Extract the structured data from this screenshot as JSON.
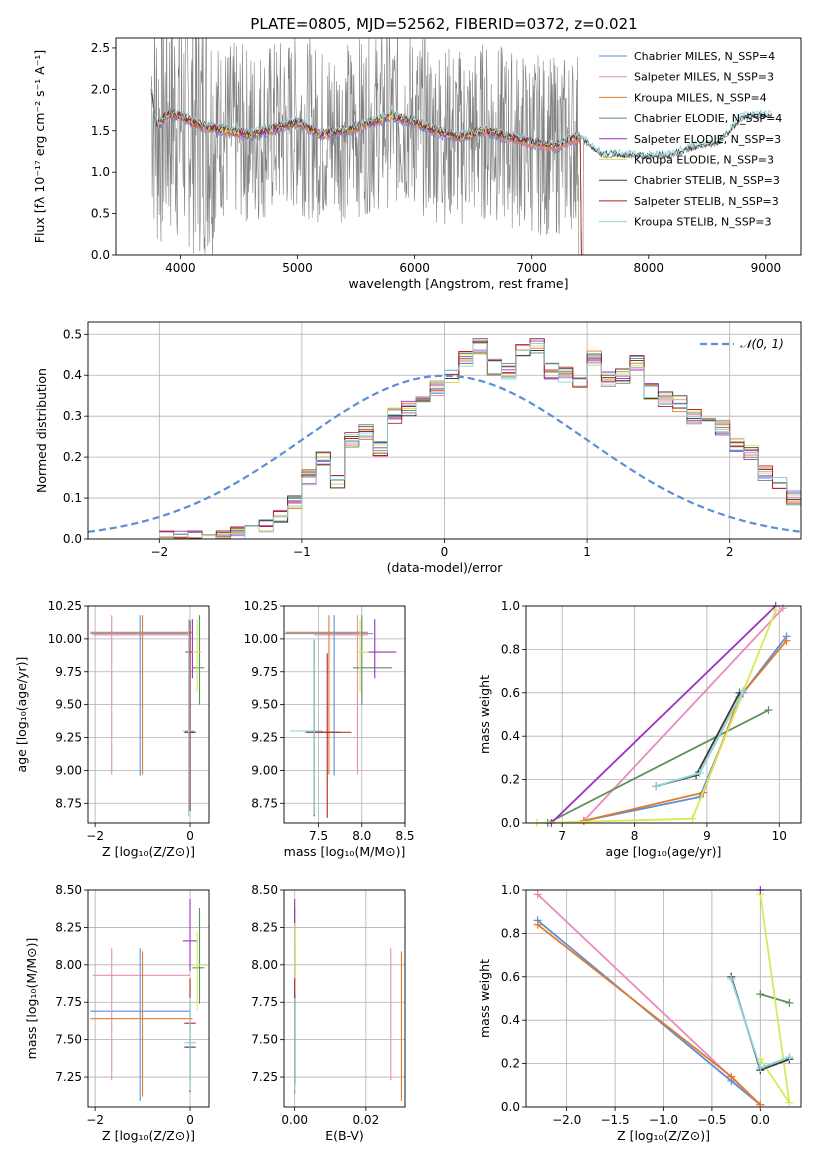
{
  "title": "PLATE=0805, MJD=52562, FIBERID=0372, z=0.021",
  "colors": {
    "Chabrier MILES": "#5b8fd9",
    "Salpeter MILES": "#e98bbd",
    "Kroupa MILES": "#e07b2a",
    "Chabrier ELODIE": "#5e8f5e",
    "Salpeter ELODIE": "#9b30c0",
    "Kroupa ELODIE": "#d8e85a",
    "Chabrier STELIB": "#3a3a3a",
    "Salpeter STELIB": "#b22222",
    "Kroupa STELIB": "#8fd4d8",
    "data": "#808080",
    "normal": "#5b8fd9"
  },
  "chart_data": [
    {
      "type": "line",
      "name": "spectrum",
      "xlabel": "wavelength [Angstrom, rest frame]",
      "ylabel": "Flux [fλ 10⁻¹⁷ erg cm⁻² s⁻¹ A⁻¹]",
      "xlim": [
        3450,
        9300
      ],
      "ylim": [
        0,
        2.62
      ],
      "xticks": [
        "4000",
        "5000",
        "6000",
        "7000",
        "8000",
        "9000"
      ],
      "yticks": [
        "0.0",
        "0.5",
        "1.0",
        "1.5",
        "2.0",
        "2.5"
      ],
      "legend_placement": "top-right",
      "legend": [
        "Chabrier MILES, N_SSP=4",
        "Salpeter MILES, N_SSP=3",
        "Kroupa MILES, N_SSP=4",
        "Chabrier ELODIE, N_SSP=4",
        "Salpeter ELODIE, N_SSP=3",
        "Kroupa ELODIE, N_SSP=3",
        "Chabrier STELIB, N_SSP=3",
        "Salpeter STELIB, N_SSP=3",
        "Kroupa STELIB, N_SSP=3"
      ],
      "model_continuum": {
        "x": [
          3750,
          3800,
          3900,
          4000,
          4100,
          4200,
          4400,
          4600,
          4800,
          5000,
          5200,
          5400,
          5600,
          5800,
          6000,
          6200,
          6400,
          6600,
          6800,
          7000,
          7200,
          7400,
          7600,
          7800,
          8000,
          8200,
          8400,
          8600,
          8800,
          9000
        ],
        "y": [
          2.0,
          1.55,
          1.7,
          1.68,
          1.6,
          1.55,
          1.5,
          1.45,
          1.52,
          1.6,
          1.45,
          1.5,
          1.58,
          1.68,
          1.6,
          1.48,
          1.42,
          1.5,
          1.42,
          1.35,
          1.3,
          1.42,
          1.2,
          1.2,
          1.18,
          1.2,
          1.3,
          1.35,
          1.65,
          1.68
        ]
      }
    },
    {
      "type": "bar",
      "name": "residual-histogram",
      "xlabel": "(data-model)/error",
      "ylabel": "Normed distribution",
      "xlim": [
        -2.5,
        2.5
      ],
      "ylim": [
        0,
        0.53
      ],
      "xticks": [
        "−2",
        "−1",
        "0",
        "1",
        "2"
      ],
      "yticks": [
        "0.0",
        "0.1",
        "0.2",
        "0.3",
        "0.4",
        "0.5"
      ],
      "legend": [
        "𝒩(0, 1)"
      ],
      "bin_width": 0.1,
      "bin_start": -2.0,
      "values": [
        0.0,
        0.0,
        0.0,
        0.0,
        0.0,
        0.01,
        0.02,
        0.03,
        0.06,
        0.09,
        0.15,
        0.2,
        0.14,
        0.24,
        0.26,
        0.22,
        0.3,
        0.32,
        0.33,
        0.37,
        0.4,
        0.44,
        0.47,
        0.42,
        0.41,
        0.46,
        0.47,
        0.41,
        0.4,
        0.38,
        0.44,
        0.39,
        0.4,
        0.43,
        0.36,
        0.34,
        0.33,
        0.3,
        0.29,
        0.27,
        0.23,
        0.21,
        0.16,
        0.14,
        0.1,
        0.06
      ]
    },
    {
      "type": "scatter",
      "name": "age-vs-Z",
      "xlabel": "Z [log₁₀(Z/Z⊙)]",
      "ylabel": "age  [log₁₀(age/yr)]",
      "xlim": [
        -2.15,
        0.4
      ],
      "ylim": [
        8.6,
        10.25
      ],
      "xticks": [
        "−2",
        "0"
      ],
      "yticks": [
        "8.75",
        "9.00",
        "9.25",
        "9.50",
        "9.75",
        "10.00",
        "10.25"
      ]
    },
    {
      "type": "scatter",
      "name": "age-vs-mass",
      "xlabel": "mass [log₁₀(M/M⊙)]",
      "xlim": [
        7.1,
        8.5
      ],
      "ylim": [
        8.6,
        10.25
      ],
      "xticks": [
        "7.5",
        "8.0",
        "8.5"
      ],
      "yticks": [
        "8.75",
        "9.00",
        "9.25",
        "9.50",
        "9.75",
        "10.00",
        "10.25"
      ]
    },
    {
      "type": "line",
      "name": "mass-weight-vs-age",
      "xlabel": "age  [log₁₀(age/yr)]",
      "ylabel": "mass weight",
      "xlim": [
        6.5,
        10.3
      ],
      "ylim": [
        0,
        1.0
      ],
      "xticks": [
        "7",
        "8",
        "9",
        "10"
      ],
      "yticks": [
        "0.0",
        "0.2",
        "0.4",
        "0.6",
        "0.8",
        "1.0"
      ],
      "series": [
        {
          "name": "Chabrier MILES",
          "x": [
            7.3,
            8.9,
            9.5,
            10.1
          ],
          "y": [
            0.01,
            0.12,
            0.6,
            0.86
          ]
        },
        {
          "name": "Salpeter MILES",
          "x": [
            7.3,
            10.05
          ],
          "y": [
            0.01,
            0.99
          ]
        },
        {
          "name": "Kroupa MILES",
          "x": [
            7.3,
            8.95,
            9.45,
            10.1
          ],
          "y": [
            0.01,
            0.14,
            0.58,
            0.84
          ]
        },
        {
          "name": "Chabrier ELODIE",
          "x": [
            6.8,
            9.85
          ],
          "y": [
            0.0,
            0.52
          ]
        },
        {
          "name": "Salpeter ELODIE",
          "x": [
            6.85,
            9.95
          ],
          "y": [
            0.0,
            1.0
          ]
        },
        {
          "name": "Kroupa ELODIE",
          "x": [
            6.65,
            8.8,
            9.95
          ],
          "y": [
            0.0,
            0.02,
            0.98
          ]
        },
        {
          "name": "Chabrier STELIB",
          "x": [
            8.3,
            8.85,
            9.45
          ],
          "y": [
            0.17,
            0.22,
            0.6
          ]
        },
        {
          "name": "Kroupa STELIB",
          "x": [
            8.3,
            8.9,
            9.5
          ],
          "y": [
            0.17,
            0.23,
            0.61
          ]
        }
      ]
    },
    {
      "type": "scatter",
      "name": "mass-vs-Z",
      "xlabel": "Z [log₁₀(Z/Z⊙)]",
      "ylabel": "mass [log₁₀(M/M⊙)]",
      "xlim": [
        -2.15,
        0.4
      ],
      "ylim": [
        7.05,
        8.5
      ],
      "xticks": [
        "−2",
        "0"
      ],
      "yticks": [
        "7.25",
        "7.50",
        "7.75",
        "8.00",
        "8.25",
        "8.50"
      ]
    },
    {
      "type": "scatter",
      "name": "mass-vs-ebv",
      "xlabel": "E(B-V)",
      "xlim": [
        -0.003,
        0.031
      ],
      "ylim": [
        7.05,
        8.5
      ],
      "xticks": [
        "0.00",
        "0.02"
      ],
      "yticks": [
        "7.25",
        "7.50",
        "7.75",
        "8.00",
        "8.25",
        "8.50"
      ]
    },
    {
      "type": "line",
      "name": "mass-weight-vs-Z",
      "xlabel": "Z [log₁₀(Z/Z⊙)]",
      "ylabel": "mass weight",
      "xlim": [
        -2.42,
        0.42
      ],
      "ylim": [
        0,
        1.0
      ],
      "xticks": [
        "−2.0",
        "−1.5",
        "−1.0",
        "−0.5",
        "0.0"
      ],
      "yticks": [
        "0.0",
        "0.2",
        "0.4",
        "0.6",
        "0.8",
        "1.0"
      ],
      "series": [
        {
          "name": "Chabrier MILES",
          "x": [
            -2.3,
            -0.3,
            0.0
          ],
          "y": [
            0.86,
            0.12,
            0.01
          ]
        },
        {
          "name": "Salpeter MILES",
          "x": [
            -2.3,
            0.0
          ],
          "y": [
            0.98,
            0.01
          ]
        },
        {
          "name": "Kroupa MILES",
          "x": [
            -2.3,
            -0.3,
            0.0
          ],
          "y": [
            0.84,
            0.14,
            0.01
          ]
        },
        {
          "name": "Chabrier ELODIE",
          "x": [
            0.0,
            0.3
          ],
          "y": [
            0.52,
            0.48
          ]
        },
        {
          "name": "Kroupa ELODIE",
          "x": [
            0.0,
            0.3,
            0.0
          ],
          "y": [
            0.98,
            0.02,
            0.22
          ]
        },
        {
          "name": "Chabrier STELIB",
          "x": [
            -0.3,
            0.0,
            0.3
          ],
          "y": [
            0.6,
            0.17,
            0.22
          ]
        },
        {
          "name": "Kroupa STELIB",
          "x": [
            -0.3,
            0.0,
            0.3
          ],
          "y": [
            0.59,
            0.18,
            0.23
          ]
        },
        {
          "name": "Salpeter ELODIE",
          "x": [
            0.0
          ],
          "y": [
            1.0
          ]
        }
      ]
    }
  ]
}
